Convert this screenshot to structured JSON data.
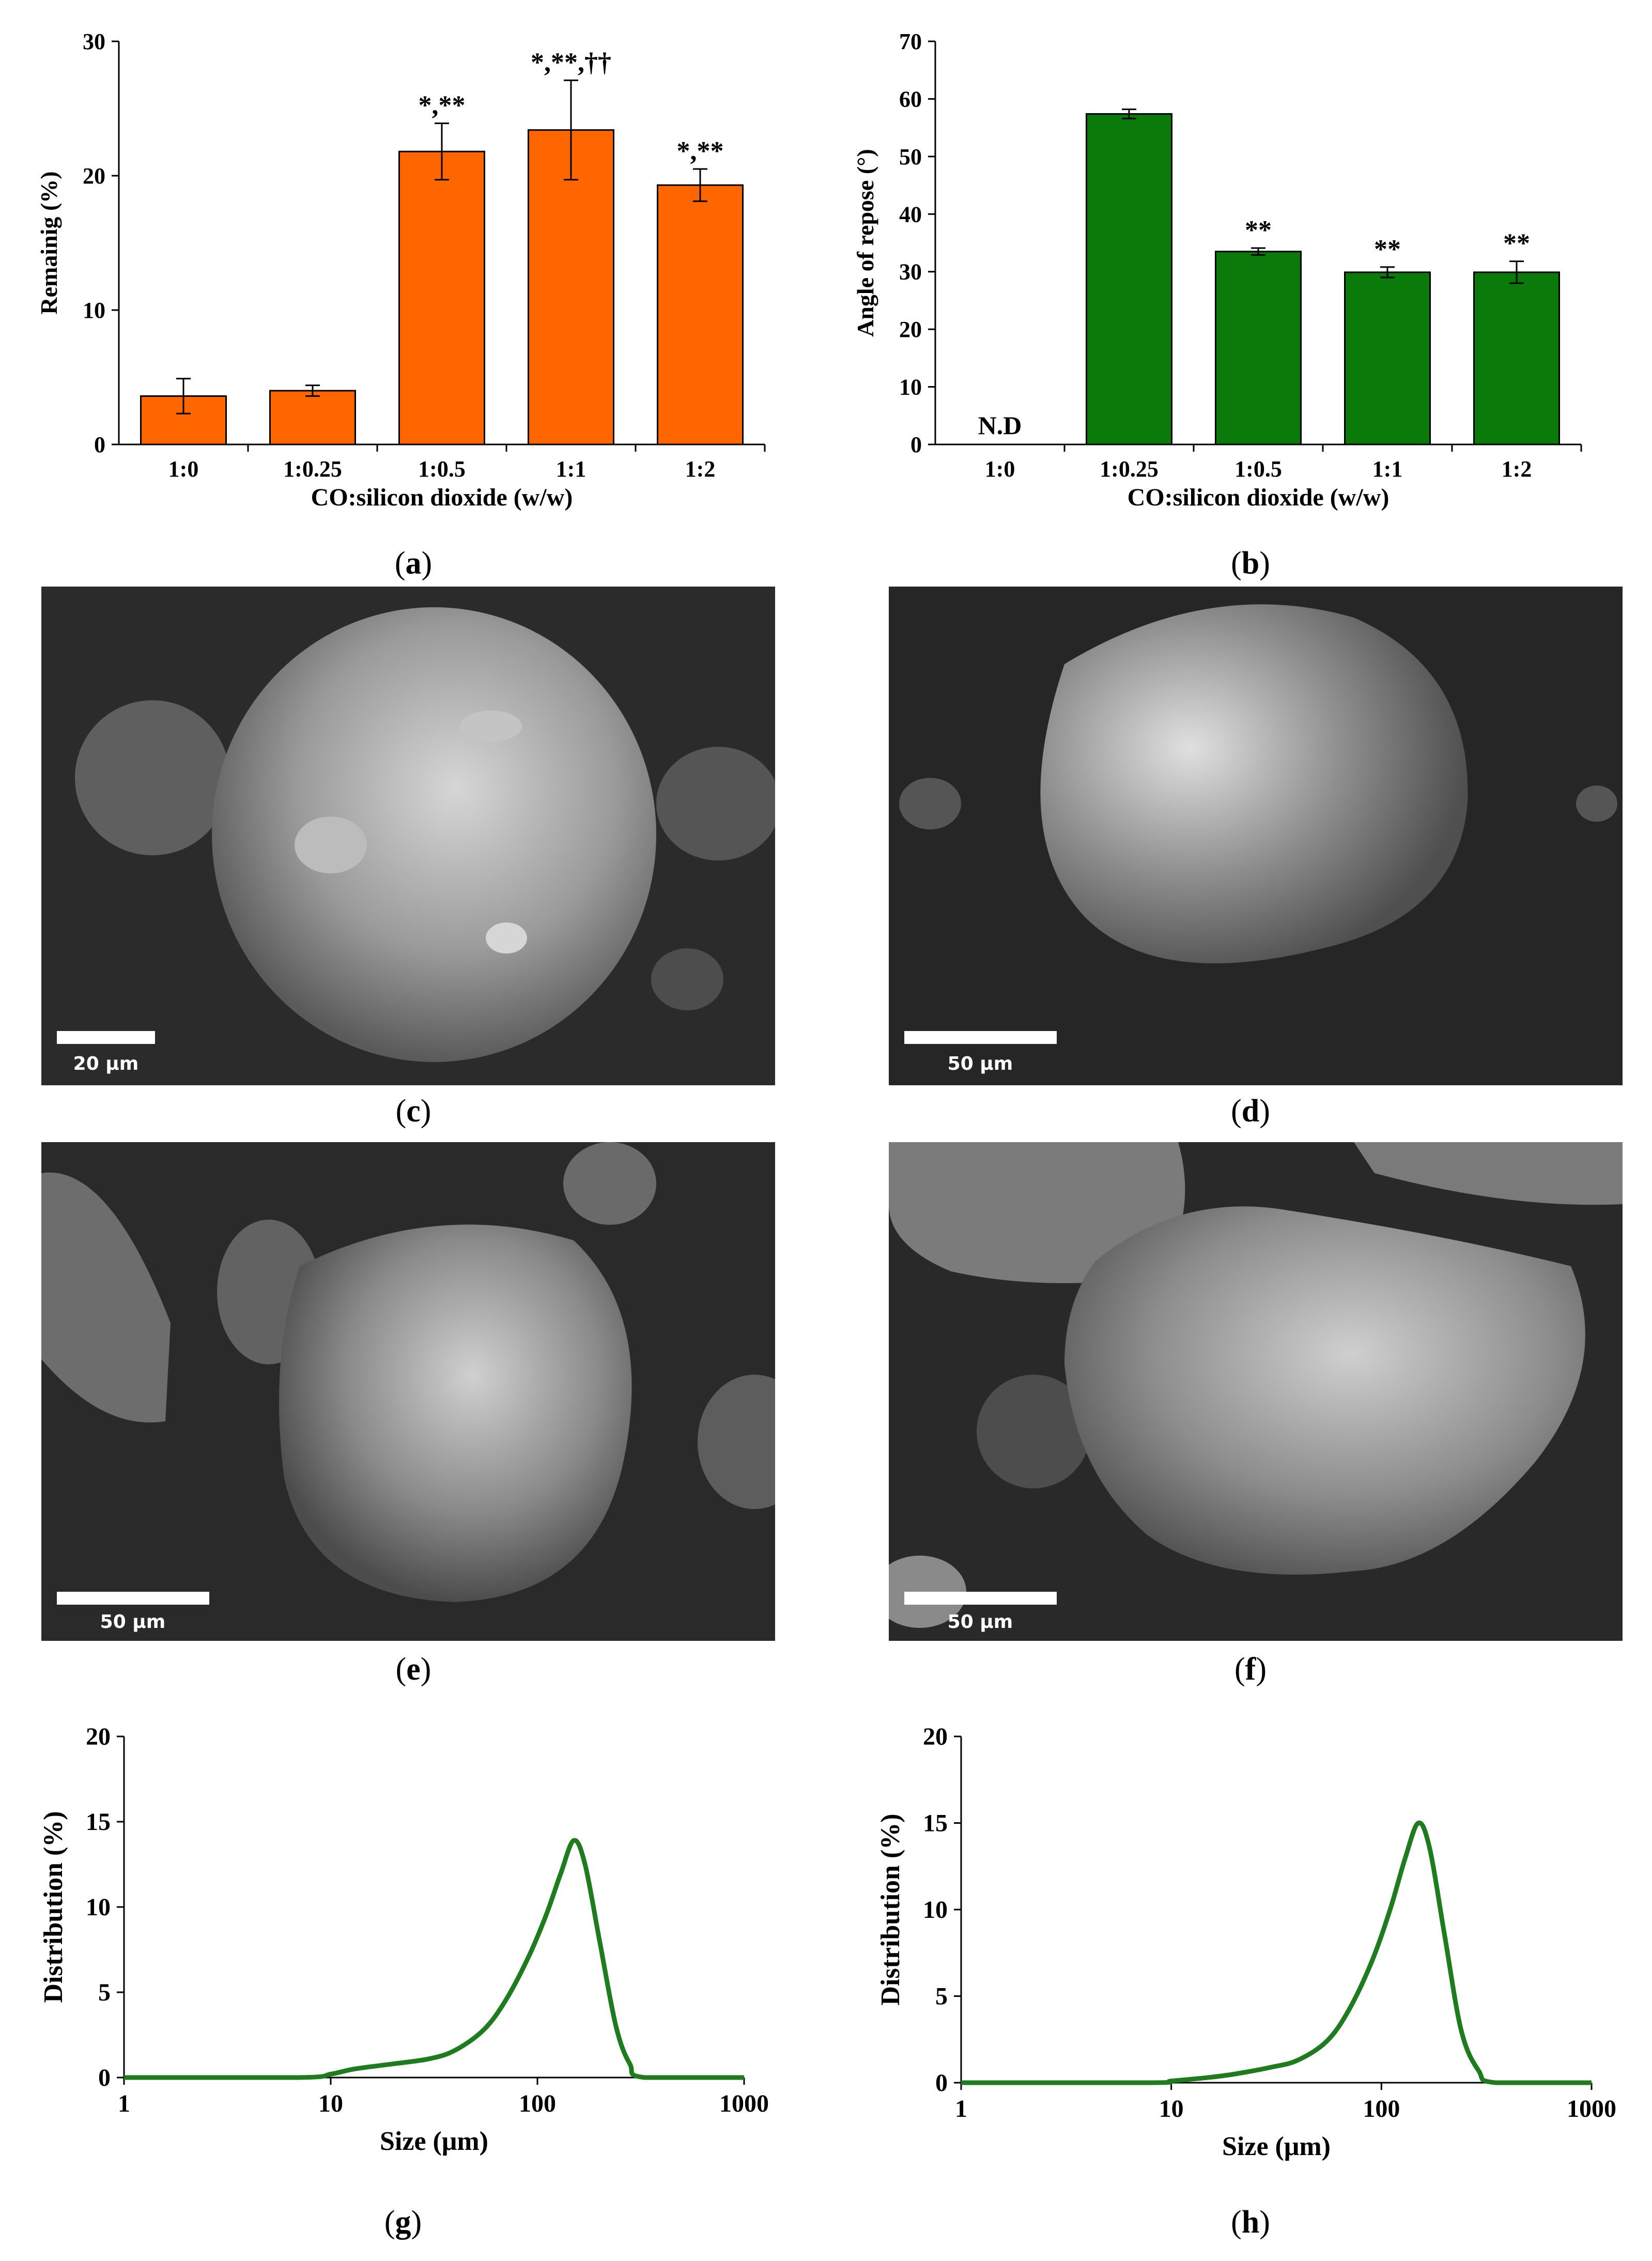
{
  "colors": {
    "orange": "#FF6600",
    "green": "#0A7A0A",
    "curve_green": "#1E7B1E",
    "axis": "#000000"
  },
  "captions": [
    "a",
    "b",
    "c",
    "d",
    "e",
    "f",
    "g",
    "h"
  ],
  "chart_data": [
    {
      "panel": "a",
      "type": "bar",
      "categories": [
        "1:0",
        "1:0.25",
        "1:0.5",
        "1:1",
        "1:2"
      ],
      "values": [
        3.6,
        4.0,
        21.8,
        23.4,
        19.3
      ],
      "errors": [
        1.3,
        0.4,
        2.1,
        3.7,
        1.2
      ],
      "annotations": [
        "",
        "",
        "*,**",
        "*,**,††",
        "*,**"
      ],
      "ylabel": "Remainig  (%)",
      "xlabel": "CO:silicon dioxide (w/w)",
      "ylim": [
        0,
        30
      ],
      "yticks": [
        0,
        10,
        20,
        30
      ],
      "color": "#FF6600",
      "grid": false
    },
    {
      "panel": "b",
      "type": "bar",
      "categories": [
        "1:0",
        "1:0.25",
        "1:0.5",
        "1:1",
        "1:2"
      ],
      "values": [
        null,
        57.4,
        33.5,
        29.9,
        29.9
      ],
      "errors": [
        0,
        0.8,
        0.6,
        0.9,
        1.9
      ],
      "annotations": [
        "N.D",
        "",
        "**",
        "**",
        "**"
      ],
      "ylabel": "Angle of repose (°)",
      "xlabel": "CO:silicon dioxide (w/w)",
      "ylim": [
        0,
        70
      ],
      "yticks": [
        0,
        10,
        20,
        30,
        40,
        50,
        60,
        70
      ],
      "color": "#0A7A0A",
      "grid": false
    },
    {
      "panel": "g",
      "type": "line",
      "xscale": "log",
      "xlim": [
        1,
        1000
      ],
      "xticks": [
        1,
        10,
        100,
        1000
      ],
      "ylim": [
        0,
        20
      ],
      "yticks": [
        0,
        5,
        10,
        15,
        20
      ],
      "xlabel": "Size (μm)",
      "ylabel": "Distribution (%)",
      "x": [
        1,
        7,
        10,
        13,
        20,
        30,
        40,
        55,
        70,
        90,
        110,
        130,
        150,
        170,
        200,
        240,
        280,
        330,
        1000
      ],
      "y": [
        0,
        0,
        0.2,
        0.5,
        0.8,
        1.1,
        1.6,
        2.8,
        4.5,
        7.0,
        9.5,
        12.0,
        13.9,
        12.5,
        8.0,
        3.0,
        0.8,
        0,
        0
      ],
      "grid": false
    },
    {
      "panel": "h",
      "type": "line",
      "xscale": "log",
      "xlim": [
        1,
        1000
      ],
      "xticks": [
        1,
        10,
        100,
        1000
      ],
      "ylim": [
        0,
        20
      ],
      "yticks": [
        0,
        5,
        10,
        15,
        20
      ],
      "xlabel": "Size (μm)",
      "ylabel": "Distribution (%)",
      "x": [
        1,
        8,
        10,
        15,
        20,
        30,
        40,
        55,
        70,
        90,
        110,
        130,
        150,
        170,
        200,
        240,
        290,
        350,
        1000
      ],
      "y": [
        0,
        0,
        0.1,
        0.3,
        0.5,
        0.9,
        1.3,
        2.4,
        4.2,
        7.0,
        10.0,
        13.0,
        15.0,
        13.5,
        8.5,
        3.0,
        0.7,
        0,
        0
      ],
      "grid": false
    }
  ],
  "sem_images": [
    {
      "panel": "c",
      "scale_label": "20 µm"
    },
    {
      "panel": "d",
      "scale_label": "50 µm"
    },
    {
      "panel": "e",
      "scale_label": "50 µm"
    },
    {
      "panel": "f",
      "scale_label": "50 µm"
    }
  ]
}
